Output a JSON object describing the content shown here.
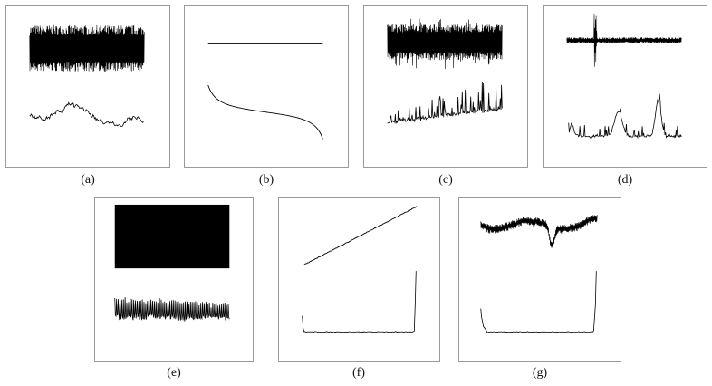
{
  "figure": {
    "panels": [
      {
        "caption": "(a)",
        "top_trace": "dense-noise-band",
        "bottom_trace": "random-walk"
      },
      {
        "caption": "(b)",
        "top_trace": "flat-line",
        "bottom_trace": "decreasing-s-curve"
      },
      {
        "caption": "(c)",
        "top_trace": "dense-band-with-spikes",
        "bottom_trace": "rising-spiky-noise"
      },
      {
        "caption": "(d)",
        "top_trace": "thin-band-with-burst",
        "bottom_trace": "sparse-spikes"
      },
      {
        "caption": "(e)",
        "top_trace": "solid-block",
        "bottom_trace": "fast-oscillation"
      },
      {
        "caption": "(f)",
        "top_trace": "linear-ramp",
        "bottom_trace": "u-shaped-spectrum"
      },
      {
        "caption": "(g)",
        "top_trace": "wandering-noisy-band",
        "bottom_trace": "u-shaped-spectrum"
      }
    ],
    "colors": {
      "trace": "#000000",
      "frame": "#9a9a9a",
      "background": "#ffffff"
    }
  }
}
